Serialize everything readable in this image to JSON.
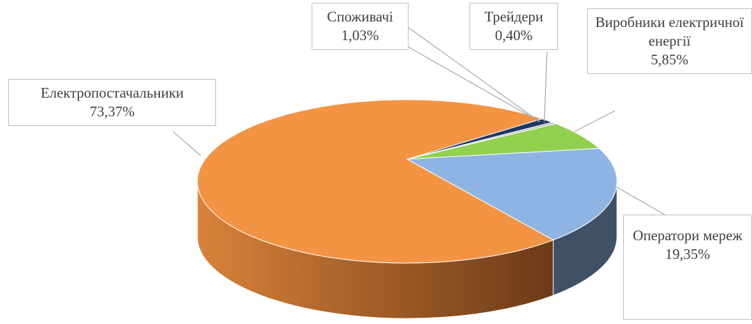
{
  "chart_data": {
    "type": "pie3d",
    "categories": [
      "Споживачі",
      "Трейдери",
      "Виробники електричної енергії",
      "Оператори мереж",
      "Електропостачальники"
    ],
    "values": [
      1.03,
      0.4,
      5.85,
      19.35,
      73.37
    ],
    "value_labels": [
      "1,03%",
      "0,40%",
      "5,85%",
      "19,35%",
      "73,37%"
    ],
    "colors": [
      "#1f3864",
      "#bfbfbf",
      "#92d050",
      "#8eb4e3",
      "#f29444"
    ]
  }
}
